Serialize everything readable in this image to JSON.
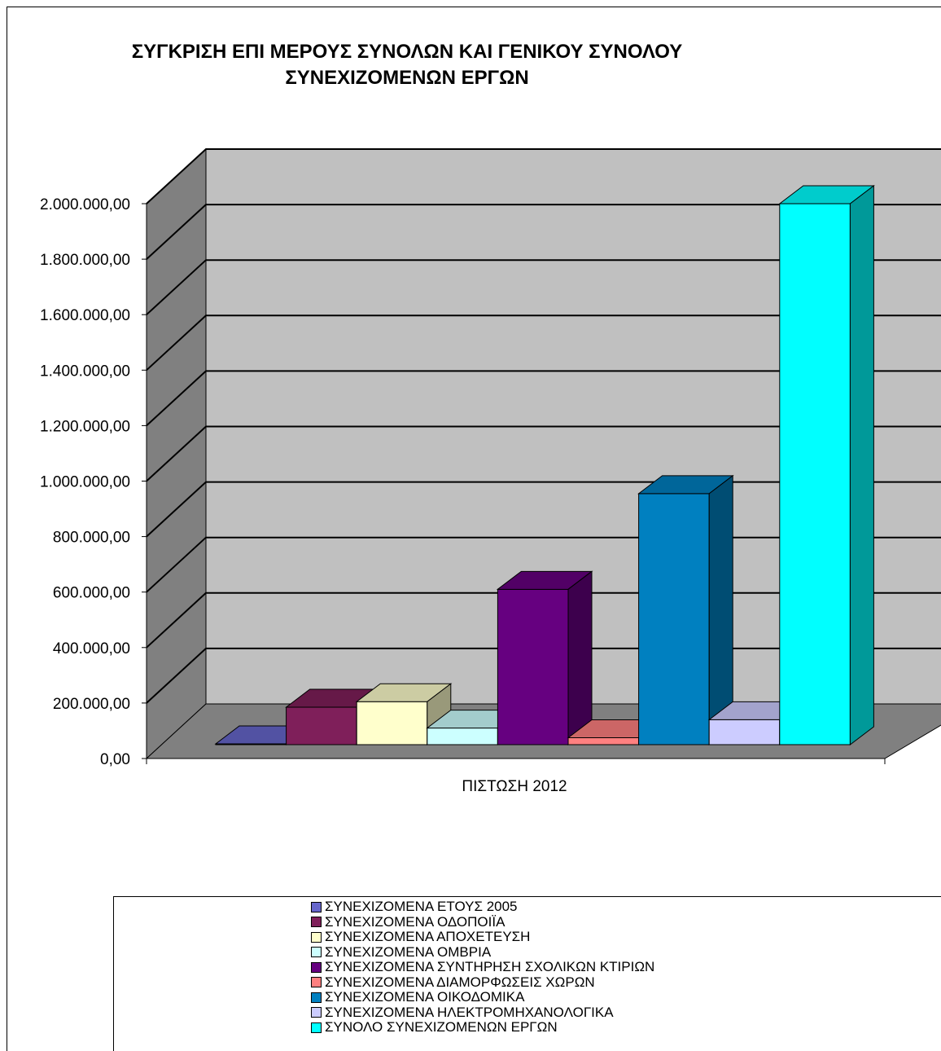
{
  "chart_data": {
    "type": "bar",
    "title": "ΣΥΓΚΡΙΣΗ ΕΠΙ ΜΕΡΟΥΣ ΣΥΝΟΛΩΝ ΚΑΙ ΓΕΝΙΚΟΥ ΣΥΝΟΛΟΥ ΣΥΝΕΧΙΖΟΜΕΝΩΝ ΕΡΓΩΝ",
    "title_lines": [
      "ΣΥΓΚΡΙΣΗ ΕΠΙ ΜΕΡΟΥΣ ΣΥΝΟΛΩΝ ΚΑΙ ΓΕΝΙΚΟΥ ΣΥΝΟΛΟΥ",
      "ΣΥΝΕΧΙΖΟΜΕΝΩΝ ΕΡΓΩΝ"
    ],
    "categories": [
      "ΠΙΣΤΩΣΗ 2012"
    ],
    "ylim": [
      0,
      2000000
    ],
    "y_ticks": [
      0,
      200000,
      400000,
      600000,
      800000,
      1000000,
      1200000,
      1400000,
      1600000,
      1800000,
      2000000
    ],
    "y_tick_labels": [
      "0,00",
      "200.000,00",
      "400.000,00",
      "600.000,00",
      "800.000,00",
      "1.000.000,00",
      "1.200.000,00",
      "1.400.000,00",
      "1.600.000,00",
      "1.800.000,00",
      "2.000.000,00"
    ],
    "grid": true,
    "three_d": true,
    "legend_position": "bottom",
    "series": [
      {
        "name": "ΣΥΝΕΧΙΖΟΜΕΝΑ ΕΤΟΥΣ 2005",
        "values": [
          3000
        ],
        "color": "#6666cc"
      },
      {
        "name": "ΣΥΝΕΧΙΖΟΜΕΝΑ ΟΔΟΠΟΙΪΑ",
        "values": [
          135000
        ],
        "color": "#7f1f5a"
      },
      {
        "name": "ΣΥΝΕΧΙΖΟΜΕΝΑ ΑΠΟΧΕΤΕΥΣΗ",
        "values": [
          155000
        ],
        "color": "#ffffcc"
      },
      {
        "name": "ΣΥΝΕΧΙΖΟΜΕΝΑ ΟΜΒΡΙΑ",
        "values": [
          60000
        ],
        "color": "#ccffff"
      },
      {
        "name": "ΣΥΝΕΧΙΖΟΜΕΝΑ ΣΥΝΤΗΡΗΣΗ ΣΧΟΛΙΚΩΝ ΚΤΙΡΙΩΝ",
        "values": [
          560000
        ],
        "color": "#660080"
      },
      {
        "name": "ΣΥΝΕΧΙΖΟΜΕΝΑ ΔΙΑΜΟΡΦΩΣΕΙΣ ΧΩΡΩΝ",
        "values": [
          25000
        ],
        "color": "#ff8080"
      },
      {
        "name": "ΣΥΝΕΧΙΖΟΜΕΝΑ ΟΙΚΟΔΟΜΙΚΑ",
        "values": [
          905000
        ],
        "color": "#0080c0"
      },
      {
        "name": "ΣΥΝΕΧΙΖΟΜΕΝΑ ΗΛΕΚΤΡΟΜΗΧΑΝΟΛΟΓΙΚΑ",
        "values": [
          90000
        ],
        "color": "#ccccff"
      },
      {
        "name": "ΣΥΝΟΛΟ ΣΥΝΕΧΙΖΟΜΕΝΩΝ ΕΡΓΩΝ",
        "values": [
          1950000
        ],
        "color": "#00ffff"
      }
    ]
  }
}
